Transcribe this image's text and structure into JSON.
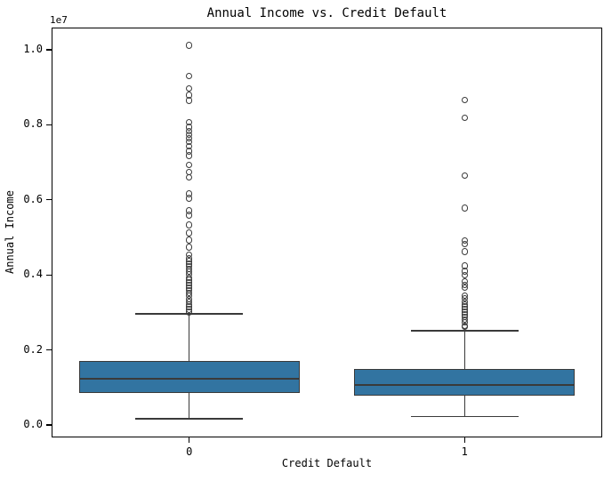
{
  "chart_data": {
    "type": "boxplot",
    "title": "Annual Income vs. Credit Default",
    "xlabel": "Credit Default",
    "ylabel": "Annual Income",
    "y_offset_text": "1e7",
    "categories": [
      "0",
      "1"
    ],
    "xlim": [
      -0.5,
      1.5
    ],
    "ylim": [
      -332000,
      10592000
    ],
    "yticks": [
      {
        "value": 0,
        "label": "0.0"
      },
      {
        "value": 2000000,
        "label": "0.2"
      },
      {
        "value": 4000000,
        "label": "0.4"
      },
      {
        "value": 6000000,
        "label": "0.6"
      },
      {
        "value": 8000000,
        "label": "0.8"
      },
      {
        "value": 10000000,
        "label": "1.0"
      }
    ],
    "box_width": 0.8,
    "cap_width": 0.39,
    "grid": false,
    "legend": "none",
    "colors": {
      "box_fill": "#3274A1",
      "box_edge": "#3A3A3A",
      "median_line": "#3A3A3A",
      "whisker": "#3A3A3A",
      "outlier_edge": "#3A3A3A",
      "spine": "#000000",
      "text": "#000000",
      "background": "#FFFFFF"
    },
    "series": [
      {
        "category": "0",
        "whisker_low": 170000,
        "q1": 850000,
        "median": 1230000,
        "q3": 1710000,
        "whisker_high": 2960000,
        "outliers": [
          10120000,
          9310000,
          8960000,
          8790000,
          8650000,
          8060000,
          7940000,
          7840000,
          7730000,
          7650000,
          7540000,
          7420000,
          7300000,
          7180000,
          6940000,
          6750000,
          6590000,
          6160000,
          6040000,
          5710000,
          5590000,
          5330000,
          5120000,
          4930000,
          4740000,
          4530000,
          4430000,
          4360000,
          4290000,
          4220000,
          4150000,
          4080000,
          4010000,
          3930000,
          3860000,
          3790000,
          3720000,
          3650000,
          3580000,
          3510000,
          3440000,
          3360000,
          3290000,
          3220000,
          3150000,
          3080000,
          3010000
        ]
      },
      {
        "category": "1",
        "whisker_low": 220000,
        "q1": 780000,
        "median": 1070000,
        "q3": 1490000,
        "whisker_high": 2510000,
        "outliers": [
          8670000,
          8180000,
          6640000,
          5780000,
          4910000,
          4830000,
          4620000,
          4240000,
          4100000,
          4000000,
          3820000,
          3740000,
          3670000,
          3440000,
          3370000,
          3290000,
          3220000,
          3150000,
          3080000,
          3010000,
          2940000,
          2870000,
          2800000,
          2730000,
          2650000,
          2610000
        ]
      }
    ]
  }
}
